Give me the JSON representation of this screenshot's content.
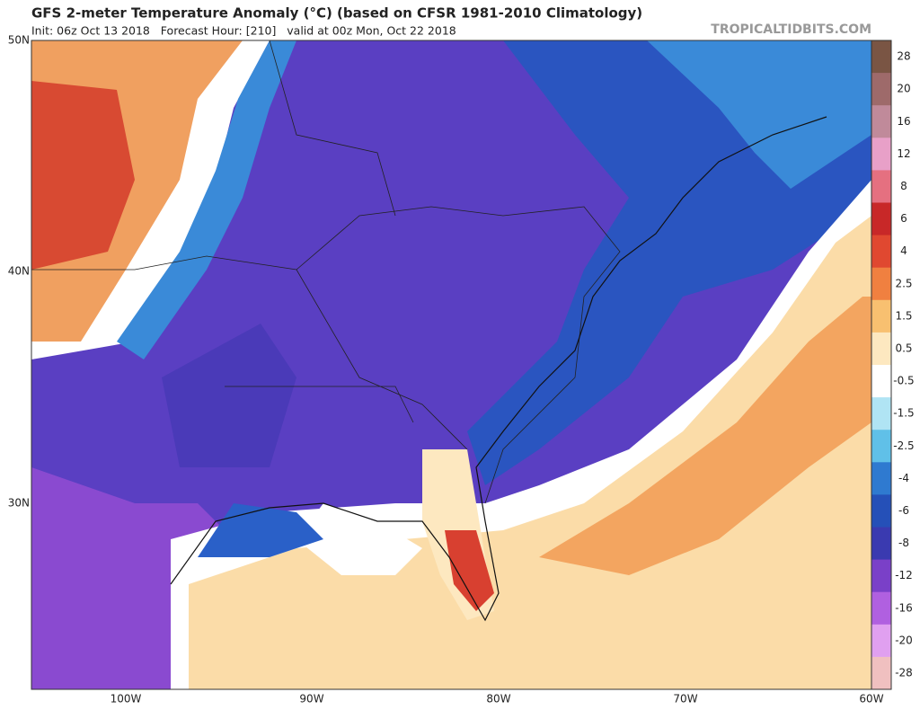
{
  "title": "GFS 2-meter Temperature Anomaly (°C) (based on CFSR 1981-2010 Climatology)",
  "subtitle": "Init: 06z Oct 13 2018   Forecast Hour: [210]   valid at 00z Mon, Oct 22 2018",
  "site": "TROPICALTIDBITS.COM",
  "latitude_labels": [
    "50N",
    "40N",
    "30N"
  ],
  "longitude_labels": [
    "100W",
    "90W",
    "80W",
    "70W",
    "60W"
  ],
  "colorbar": {
    "labels": [
      28,
      20,
      16,
      12,
      8,
      6,
      4,
      2.5,
      1.5,
      0.5,
      -0.5,
      -1.5,
      -2.5,
      -4,
      -6,
      -8,
      -12,
      -16,
      -20,
      -28
    ],
    "colors": [
      "#7a5544",
      "#9e6a6a",
      "#c08a9a",
      "#e8a0c8",
      "#e57080",
      "#c82828",
      "#e04830",
      "#f08040",
      "#f8c070",
      "#fde8c0",
      "#ffffff",
      "#b0e4f4",
      "#60c0e8",
      "#2f7ad0",
      "#2550b8",
      "#3a3ab0",
      "#7a40c8",
      "#b060e0",
      "#e0a0f0",
      "#f0c0c0"
    ]
  }
}
